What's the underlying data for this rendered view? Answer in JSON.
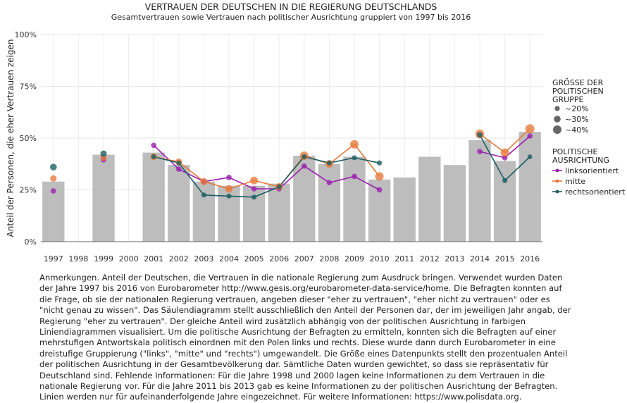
{
  "chart_data": {
    "type": "bar",
    "title": "VERTRAUEN DER DEUTSCHEN IN DIE REGIERUNG DEUTSCHLANDS",
    "subtitle": "Gesamtvertrauen sowie Vertrauen nach politischer Ausrichtung gruppiert von 1997 bis 2016",
    "ylabel": "Anteil der Personen, die eher Vertrauen zeigen",
    "xlabel": "",
    "ylim": [
      0,
      1
    ],
    "yticks": [
      0,
      0.25,
      0.5,
      0.75,
      1
    ],
    "ytick_labels": [
      "0%",
      "25%",
      "50%",
      "75%",
      "100%"
    ],
    "categories": [
      "1997",
      "1998",
      "1999",
      "2000",
      "2001",
      "2002",
      "2003",
      "2004",
      "2005",
      "2006",
      "2007",
      "2008",
      "2009",
      "2010",
      "2011",
      "2012",
      "2013",
      "2014",
      "2015",
      "2016"
    ],
    "bar_values": [
      0.29,
      null,
      0.42,
      null,
      0.43,
      0.37,
      0.29,
      0.27,
      0.27,
      0.28,
      0.415,
      0.375,
      0.41,
      0.3,
      0.31,
      0.41,
      0.37,
      0.49,
      0.39,
      0.53
    ],
    "bar_color": "#bdbdbd",
    "series": [
      {
        "name": "linksorientiert",
        "color": "#9b1faf",
        "values": [
          0.245,
          null,
          0.395,
          null,
          0.465,
          0.35,
          0.29,
          0.31,
          0.255,
          0.255,
          0.365,
          0.285,
          0.315,
          0.25,
          null,
          null,
          null,
          0.435,
          0.405,
          0.51
        ],
        "sizes": [
          0.22,
          null,
          0.22,
          null,
          0.22,
          0.22,
          0.22,
          0.22,
          0.22,
          0.22,
          0.22,
          0.22,
          0.22,
          0.22,
          null,
          null,
          null,
          0.22,
          0.22,
          0.22
        ]
      },
      {
        "name": "mitte",
        "color": "#e8793a",
        "values": [
          0.305,
          null,
          0.405,
          null,
          0.41,
          0.385,
          0.29,
          0.255,
          0.295,
          0.265,
          0.415,
          0.375,
          0.47,
          0.315,
          null,
          null,
          null,
          0.52,
          0.43,
          0.545
        ],
        "sizes": [
          0.28,
          null,
          0.28,
          null,
          0.3,
          0.3,
          0.32,
          0.34,
          0.36,
          0.32,
          0.4,
          0.36,
          0.4,
          0.4,
          null,
          null,
          null,
          0.42,
          0.4,
          0.44
        ]
      },
      {
        "name": "rechtsorientiert",
        "color": "#1a5e63",
        "values": [
          0.36,
          null,
          0.425,
          null,
          0.41,
          0.38,
          0.225,
          0.22,
          0.215,
          0.265,
          0.41,
          0.38,
          0.405,
          0.38,
          null,
          null,
          null,
          0.515,
          0.295,
          0.41
        ],
        "sizes": [
          0.3,
          null,
          0.28,
          null,
          0.2,
          0.2,
          0.2,
          0.2,
          0.2,
          0.2,
          0.2,
          0.2,
          0.2,
          0.2,
          null,
          null,
          null,
          0.24,
          0.2,
          0.18
        ]
      }
    ],
    "legend": {
      "size_title": "GRÖSSE DER\nPOLITISCHEN\nGRUPPE",
      "size_items": [
        {
          "label": "~20%",
          "size": 0.2
        },
        {
          "label": "~30%",
          "size": 0.3
        },
        {
          "label": "~40%",
          "size": 0.4
        }
      ],
      "color_title": "POLITISCHE\nAUSRICHTUNG",
      "placement": "right"
    },
    "grid": true
  },
  "notes": "Anmerkungen. Anteil der Deutschen, die Vertrauen in die nationale Regierung zum Ausdruck bringen. Verwendet wurden Daten der Jahre 1997 bis 2016 von Eurobarometer http://www.gesis.org/eurobarometer-data-service/home. Die Befragten konnten auf die Frage, ob sie der nationalen Regierung vertrauen, angeben dieser \"eher zu vertrauen\", \"eher nicht zu vertrauen\" oder es \"nicht genau zu wissen\". Das Säulendiagramm stellt ausschließlich den Anteil der Personen dar, der im jeweiligen Jahr angab, der Regierung \"eher zu vertrauen\". Der gleiche Anteil wird zusätzlich abhängig von der politischen Ausrichtung in farbigen Liniendiagrammen visualisiert. Um die politische Ausrichtung der Befragten zu ermitteln, konnten sich die Befragten auf einer mehrstufigen Antwortskala politisch einordnen mit den Polen links und rechts. Diese wurde dann durch Eurobarometer in eine dreistufige Gruppierung (\"links\", \"mitte\" und \"rechts\") umgewandelt. Die Größe eines Datenpunkts stellt den prozentualen Anteil der politischen Ausrichtung in der Gesamtbevölkerung dar. Sämtliche Daten wurden gewichtet, so dass sie repräsentativ für Deutschland sind. Fehlende Informationen: Für die Jahre 1998 und 2000 lagen keine Informationen zu dem Vertrauen in die nationale Regierung vor. Für die Jahre 2011 bis 2013 gab es keine Informationen zu der politischen Ausrichtung der Befragten. Linien werden nur für aufeinanderfolgende Jahre eingezeichnet. Für weitere Informationen: https://www.polisdata.org."
}
